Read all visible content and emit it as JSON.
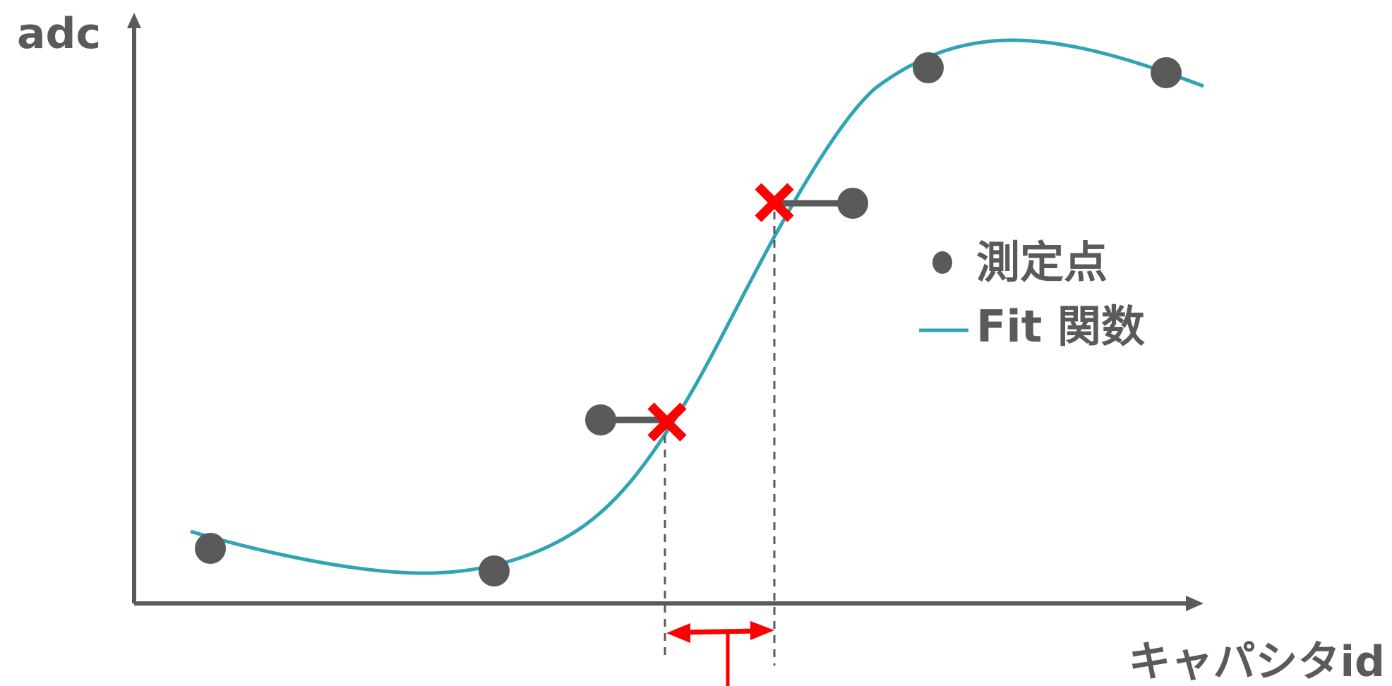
{
  "axes": {
    "y_label": "adc",
    "x_label": "キャパシタid"
  },
  "legend": {
    "items": [
      {
        "label": "測定点",
        "marker": "dot",
        "color": "#5a5a5a"
      },
      {
        "label": "Fit 関数",
        "marker": "line",
        "color": "#2fa4b4"
      }
    ]
  },
  "colors": {
    "axis": "#5a5a5a",
    "fit_curve": "#2fa4b4",
    "highlight": "#ff0000"
  }
}
